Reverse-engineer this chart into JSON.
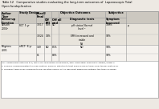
{
  "title1": "Table 12   Comparative studies evaluating the long-term outcomes of  Laparoscopic Total",
  "title2": "Open fundoplication",
  "bg_color": "#ede9e3",
  "header_bg": "#ccc8c0",
  "row1_bg": "#e8e4dc",
  "row2_bg": "#f5f2ee",
  "border_color": "#999999",
  "footnotes": [
    "RCT: randomized controlled trial; nRCT: non-randomized comparisons; EMS: esophageal manometry studies; PGWB: P",
    "a  Primarily compared patients in a per protocol analysis, intention to treat analysis did not differ from the per protocol ar",
    "b  Significant differences compared to pre-operative values, but no significant differences between two types of surgen"
  ],
  "rows": [
    {
      "author": "Nilsson\n2004ᵃ",
      "design": "RCT 5 yr",
      "enroll1": "30/17",
      "ppi1": "84%",
      "med1": "ND",
      "diag1": "pH status Normal\nlevel ᵇ",
      "symptom1": "100%",
      "extra1": "p",
      "enroll2": "30/24",
      "ppi2": "74%",
      "med2": "",
      "diag2": "EMS increased and\nstable\nNS",
      "symptom2": "92%"
    },
    {
      "author": "Pelgrims\n2001",
      "design": "nRCTᶜ 8 yr",
      "enroll1": "149",
      "ppi1": "ND",
      "med1": "85%",
      "diag1": "ND",
      "symptom1": "94%",
      "extra1": "",
      "enroll2": "81",
      "ppi2": "",
      "med2": "88%",
      "diag2": "",
      "symptom2": "92%"
    }
  ]
}
